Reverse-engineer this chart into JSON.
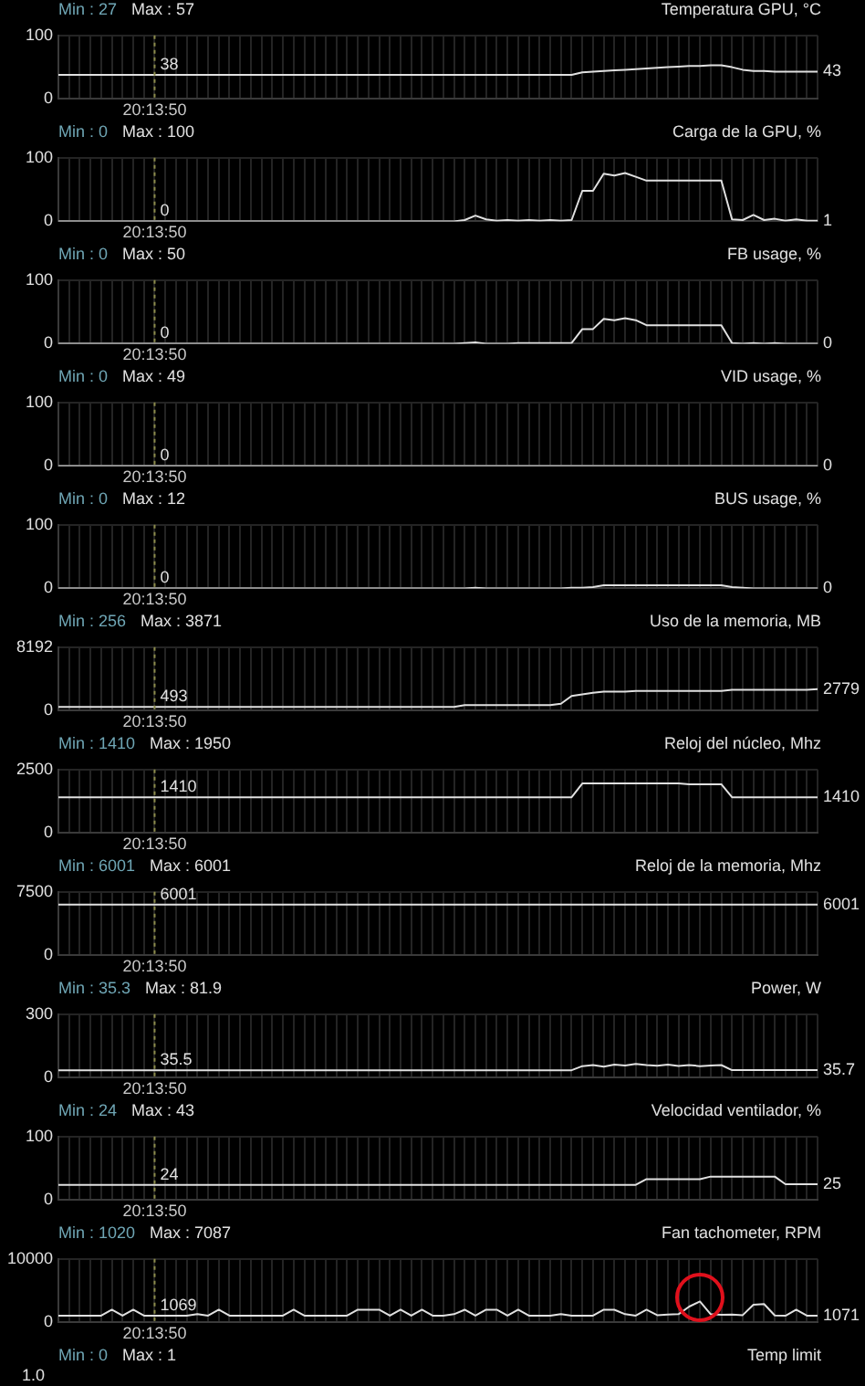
{
  "chart_data": [
    {
      "type": "line",
      "title": "Temperatura GPU, °C",
      "annotations": [
        "Min : 27",
        "Max : 57",
        {
          "text": "38",
          "x": "20:13:50",
          "y": 38
        },
        "43"
      ],
      "categories": [
        null,
        null,
        null,
        null,
        null,
        null,
        null,
        null,
        null,
        "20:13:50",
        null,
        null,
        null,
        null,
        null,
        null,
        null,
        null,
        null,
        null,
        null,
        null,
        null,
        null,
        null,
        null,
        null,
        null,
        null,
        null,
        null,
        null,
        null,
        null,
        null,
        null,
        null,
        null,
        null,
        null,
        null,
        null,
        null,
        null,
        null,
        null,
        null,
        null,
        null,
        null,
        null,
        null,
        null,
        null,
        null,
        null,
        null,
        null,
        null,
        null,
        null,
        null,
        null,
        null,
        null,
        null,
        null,
        null,
        null,
        null,
        null,
        null
      ],
      "color": "#e0e0e0",
      "ylim": [
        0,
        100
      ],
      "yticks": [
        0,
        100
      ],
      "grid": true,
      "ref_lines": [
        {
          "axis": "x",
          "value": "20:13:50",
          "color": "#8a8a4a",
          "line_style": "dotted"
        }
      ],
      "values": [
        38,
        38,
        38,
        38,
        38,
        38,
        38,
        38,
        38,
        38,
        38,
        38,
        38,
        38,
        38,
        38,
        38,
        38,
        38,
        38,
        38,
        38,
        38,
        38,
        38,
        38,
        38,
        38,
        38,
        38,
        38,
        38,
        38,
        38,
        38,
        38,
        38,
        38,
        38,
        38,
        38,
        38,
        38,
        38,
        38,
        38,
        38,
        38,
        38,
        42,
        43,
        44,
        45,
        46,
        47,
        48,
        49,
        50,
        51,
        52,
        52,
        53,
        53,
        50,
        46,
        44,
        44,
        43,
        43,
        43,
        43,
        43
      ]
    },
    {
      "type": "line",
      "title": "Carga de la GPU, %",
      "annotations": [
        "Min : 0",
        "Max : 100",
        {
          "text": "0",
          "x": "20:13:50",
          "y": 0
        },
        "1"
      ],
      "categories": [
        null,
        null,
        null,
        null,
        null,
        null,
        null,
        null,
        null,
        "20:13:50",
        null,
        null,
        null,
        null,
        null,
        null,
        null,
        null,
        null,
        null,
        null,
        null,
        null,
        null,
        null,
        null,
        null,
        null,
        null,
        null,
        null,
        null,
        null,
        null,
        null,
        null,
        null,
        null,
        null,
        null,
        null,
        null,
        null,
        null,
        null,
        null,
        null,
        null,
        null,
        null,
        null,
        null,
        null,
        null,
        null,
        null,
        null,
        null,
        null,
        null,
        null,
        null,
        null,
        null,
        null,
        null,
        null,
        null,
        null,
        null,
        null,
        null
      ],
      "color": "#e0e0e0",
      "ylim": [
        0,
        100
      ],
      "yticks": [
        0,
        100
      ],
      "grid": true,
      "ref_lines": [
        {
          "axis": "x",
          "value": "20:13:50",
          "color": "#8a8a4a",
          "line_style": "dotted"
        }
      ],
      "values": [
        0,
        0,
        0,
        0,
        0,
        0,
        0,
        0,
        0,
        0,
        0,
        0,
        0,
        0,
        0,
        0,
        0,
        0,
        0,
        0,
        0,
        0,
        0,
        0,
        0,
        0,
        0,
        0,
        0,
        0,
        0,
        0,
        0,
        0,
        0,
        0,
        0,
        0,
        2,
        9,
        3,
        1,
        2,
        1,
        2,
        1,
        2,
        1,
        2,
        48,
        48,
        75,
        72,
        76,
        70,
        64,
        64,
        64,
        64,
        64,
        64,
        64,
        64,
        3,
        2,
        10,
        2,
        4,
        1,
        3,
        1,
        1
      ]
    },
    {
      "type": "line",
      "title": "FB usage, %",
      "annotations": [
        "Min : 0",
        "Max : 50",
        {
          "text": "0",
          "x": "20:13:50",
          "y": 0
        },
        "0"
      ],
      "categories": [
        null,
        null,
        null,
        null,
        null,
        null,
        null,
        null,
        null,
        "20:13:50",
        null,
        null,
        null,
        null,
        null,
        null,
        null,
        null,
        null,
        null,
        null,
        null,
        null,
        null,
        null,
        null,
        null,
        null,
        null,
        null,
        null,
        null,
        null,
        null,
        null,
        null,
        null,
        null,
        null,
        null,
        null,
        null,
        null,
        null,
        null,
        null,
        null,
        null,
        null,
        null,
        null,
        null,
        null,
        null,
        null,
        null,
        null,
        null,
        null,
        null,
        null,
        null,
        null,
        null,
        null,
        null,
        null,
        null,
        null,
        null,
        null,
        null
      ],
      "color": "#e0e0e0",
      "ylim": [
        0,
        100
      ],
      "yticks": [
        0,
        100
      ],
      "grid": true,
      "ref_lines": [
        {
          "axis": "x",
          "value": "20:13:50",
          "color": "#8a8a4a",
          "line_style": "dotted"
        }
      ],
      "values": [
        0,
        0,
        0,
        0,
        0,
        0,
        0,
        0,
        0,
        0,
        0,
        0,
        0,
        0,
        0,
        0,
        0,
        0,
        0,
        0,
        0,
        0,
        0,
        0,
        0,
        0,
        0,
        0,
        0,
        0,
        0,
        0,
        0,
        0,
        0,
        0,
        0,
        0,
        1,
        2,
        0,
        0,
        0,
        1,
        1,
        1,
        1,
        1,
        1,
        23,
        23,
        39,
        37,
        40,
        37,
        29,
        29,
        29,
        29,
        29,
        29,
        29,
        29,
        1,
        0,
        1,
        0,
        1,
        0,
        0,
        0,
        0
      ]
    },
    {
      "type": "line",
      "title": "VID usage, %",
      "annotations": [
        "Min : 0",
        "Max : 49",
        {
          "text": "0",
          "x": "20:13:50",
          "y": 0
        },
        "0"
      ],
      "categories": [
        null,
        null,
        null,
        null,
        null,
        null,
        null,
        null,
        null,
        "20:13:50",
        null,
        null,
        null,
        null,
        null,
        null,
        null,
        null,
        null,
        null,
        null,
        null,
        null,
        null,
        null,
        null,
        null,
        null,
        null,
        null,
        null,
        null,
        null,
        null,
        null,
        null,
        null,
        null,
        null,
        null,
        null,
        null,
        null,
        null,
        null,
        null,
        null,
        null,
        null,
        null,
        null,
        null,
        null,
        null,
        null,
        null,
        null,
        null,
        null,
        null,
        null,
        null,
        null,
        null,
        null,
        null,
        null,
        null,
        null,
        null,
        null,
        null
      ],
      "color": "#e0e0e0",
      "ylim": [
        0,
        100
      ],
      "yticks": [
        0,
        100
      ],
      "grid": true,
      "ref_lines": [
        {
          "axis": "x",
          "value": "20:13:50",
          "color": "#8a8a4a",
          "line_style": "dotted"
        }
      ],
      "values": [
        0,
        0,
        0,
        0,
        0,
        0,
        0,
        0,
        0,
        0,
        0,
        0,
        0,
        0,
        0,
        0,
        0,
        0,
        0,
        0,
        0,
        0,
        0,
        0,
        0,
        0,
        0,
        0,
        0,
        0,
        0,
        0,
        0,
        0,
        0,
        0,
        0,
        0,
        0,
        0,
        0,
        0,
        0,
        0,
        0,
        0,
        0,
        0,
        0,
        0,
        0,
        0,
        0,
        0,
        0,
        0,
        0,
        0,
        0,
        0,
        0,
        0,
        0,
        0,
        0,
        0,
        0,
        0,
        0,
        0,
        0,
        0
      ]
    },
    {
      "type": "line",
      "title": "BUS usage, %",
      "annotations": [
        "Min : 0",
        "Max : 12",
        {
          "text": "0",
          "x": "20:13:50",
          "y": 0
        },
        "0"
      ],
      "categories": [
        null,
        null,
        null,
        null,
        null,
        null,
        null,
        null,
        null,
        "20:13:50",
        null,
        null,
        null,
        null,
        null,
        null,
        null,
        null,
        null,
        null,
        null,
        null,
        null,
        null,
        null,
        null,
        null,
        null,
        null,
        null,
        null,
        null,
        null,
        null,
        null,
        null,
        null,
        null,
        null,
        null,
        null,
        null,
        null,
        null,
        null,
        null,
        null,
        null,
        null,
        null,
        null,
        null,
        null,
        null,
        null,
        null,
        null,
        null,
        null,
        null,
        null,
        null,
        null,
        null,
        null,
        null,
        null,
        null,
        null,
        null,
        null,
        null
      ],
      "color": "#e0e0e0",
      "ylim": [
        0,
        100
      ],
      "yticks": [
        0,
        100
      ],
      "grid": true,
      "ref_lines": [
        {
          "axis": "x",
          "value": "20:13:50",
          "color": "#8a8a4a",
          "line_style": "dotted"
        }
      ],
      "values": [
        0,
        0,
        0,
        0,
        0,
        0,
        0,
        0,
        0,
        0,
        0,
        0,
        0,
        0,
        0,
        0,
        0,
        0,
        0,
        0,
        0,
        0,
        0,
        0,
        0,
        0,
        0,
        0,
        0,
        0,
        0,
        0,
        0,
        0,
        0,
        0,
        0,
        0,
        0,
        1,
        0,
        0,
        0,
        0,
        0,
        0,
        0,
        0,
        1,
        1,
        2,
        5,
        5,
        5,
        5,
        5,
        5,
        5,
        5,
        5,
        5,
        5,
        5,
        2,
        1,
        0,
        0,
        0,
        0,
        0,
        0,
        0
      ]
    },
    {
      "type": "line",
      "title": "Uso de la memoria, MB",
      "annotations": [
        "Min : 256",
        "Max : 3871",
        {
          "text": "493",
          "x": "20:13:50",
          "y": 493
        },
        "2779"
      ],
      "categories": [
        null,
        null,
        null,
        null,
        null,
        null,
        null,
        null,
        null,
        "20:13:50",
        null,
        null,
        null,
        null,
        null,
        null,
        null,
        null,
        null,
        null,
        null,
        null,
        null,
        null,
        null,
        null,
        null,
        null,
        null,
        null,
        null,
        null,
        null,
        null,
        null,
        null,
        null,
        null,
        null,
        null,
        null,
        null,
        null,
        null,
        null,
        null,
        null,
        null,
        null,
        null,
        null,
        null,
        null,
        null,
        null,
        null,
        null,
        null,
        null,
        null,
        null,
        null,
        null,
        null,
        null,
        null,
        null,
        null,
        null,
        null,
        null,
        null
      ],
      "color": "#e0e0e0",
      "ylim": [
        0,
        8192
      ],
      "yticks": [
        0,
        8192
      ],
      "grid": true,
      "ref_lines": [
        {
          "axis": "x",
          "value": "20:13:50",
          "color": "#8a8a4a",
          "line_style": "dotted"
        }
      ],
      "values": [
        493,
        493,
        493,
        493,
        493,
        493,
        493,
        493,
        493,
        493,
        493,
        493,
        493,
        493,
        493,
        493,
        493,
        493,
        493,
        493,
        493,
        493,
        493,
        493,
        493,
        493,
        493,
        493,
        493,
        493,
        493,
        493,
        493,
        493,
        493,
        493,
        493,
        493,
        720,
        720,
        720,
        720,
        720,
        720,
        720,
        720,
        720,
        900,
        1900,
        2100,
        2300,
        2450,
        2450,
        2450,
        2550,
        2550,
        2550,
        2550,
        2550,
        2550,
        2550,
        2550,
        2550,
        2700,
        2700,
        2700,
        2700,
        2700,
        2700,
        2700,
        2700,
        2779
      ]
    },
    {
      "type": "line",
      "title": "Reloj del núcleo, Mhz",
      "annotations": [
        "Min : 1410",
        "Max : 1950",
        {
          "text": "1410",
          "x": "20:13:50",
          "y": 1410
        },
        "1410"
      ],
      "categories": [
        null,
        null,
        null,
        null,
        null,
        null,
        null,
        null,
        null,
        "20:13:50",
        null,
        null,
        null,
        null,
        null,
        null,
        null,
        null,
        null,
        null,
        null,
        null,
        null,
        null,
        null,
        null,
        null,
        null,
        null,
        null,
        null,
        null,
        null,
        null,
        null,
        null,
        null,
        null,
        null,
        null,
        null,
        null,
        null,
        null,
        null,
        null,
        null,
        null,
        null,
        null,
        null,
        null,
        null,
        null,
        null,
        null,
        null,
        null,
        null,
        null,
        null,
        null,
        null,
        null,
        null,
        null,
        null,
        null,
        null,
        null,
        null,
        null
      ],
      "color": "#e0e0e0",
      "ylim": [
        0,
        2500
      ],
      "yticks": [
        0,
        2500
      ],
      "grid": true,
      "ref_lines": [
        {
          "axis": "x",
          "value": "20:13:50",
          "color": "#8a8a4a",
          "line_style": "dotted"
        }
      ],
      "values": [
        1410,
        1410,
        1410,
        1410,
        1410,
        1410,
        1410,
        1410,
        1410,
        1410,
        1410,
        1410,
        1410,
        1410,
        1410,
        1410,
        1410,
        1410,
        1410,
        1410,
        1410,
        1410,
        1410,
        1410,
        1410,
        1410,
        1410,
        1410,
        1410,
        1410,
        1410,
        1410,
        1410,
        1410,
        1410,
        1410,
        1410,
        1410,
        1410,
        1410,
        1410,
        1410,
        1410,
        1410,
        1410,
        1410,
        1410,
        1410,
        1410,
        1950,
        1950,
        1950,
        1950,
        1950,
        1950,
        1950,
        1950,
        1950,
        1950,
        1920,
        1920,
        1920,
        1920,
        1410,
        1410,
        1410,
        1410,
        1410,
        1410,
        1410,
        1410,
        1410
      ]
    },
    {
      "type": "line",
      "title": "Reloj de la memoria, Mhz",
      "annotations": [
        "Min : 6001",
        "Max : 6001",
        {
          "text": "6001",
          "x": "20:13:50",
          "y": 6001
        },
        "6001"
      ],
      "categories": [
        null,
        null,
        null,
        null,
        null,
        null,
        null,
        null,
        null,
        "20:13:50",
        null,
        null,
        null,
        null,
        null,
        null,
        null,
        null,
        null,
        null,
        null,
        null,
        null,
        null,
        null,
        null,
        null,
        null,
        null,
        null,
        null,
        null,
        null,
        null,
        null,
        null,
        null,
        null,
        null,
        null,
        null,
        null,
        null,
        null,
        null,
        null,
        null,
        null,
        null,
        null,
        null,
        null,
        null,
        null,
        null,
        null,
        null,
        null,
        null,
        null,
        null,
        null,
        null,
        null,
        null,
        null,
        null,
        null,
        null,
        null,
        null,
        null
      ],
      "color": "#e0e0e0",
      "ylim": [
        0,
        7500
      ],
      "yticks": [
        0,
        7500
      ],
      "grid": true,
      "ref_lines": [
        {
          "axis": "x",
          "value": "20:13:50",
          "color": "#8a8a4a",
          "line_style": "dotted"
        }
      ],
      "values": [
        6001,
        6001,
        6001,
        6001,
        6001,
        6001,
        6001,
        6001,
        6001,
        6001,
        6001,
        6001,
        6001,
        6001,
        6001,
        6001,
        6001,
        6001,
        6001,
        6001,
        6001,
        6001,
        6001,
        6001,
        6001,
        6001,
        6001,
        6001,
        6001,
        6001,
        6001,
        6001,
        6001,
        6001,
        6001,
        6001,
        6001,
        6001,
        6001,
        6001,
        6001,
        6001,
        6001,
        6001,
        6001,
        6001,
        6001,
        6001,
        6001,
        6001,
        6001,
        6001,
        6001,
        6001,
        6001,
        6001,
        6001,
        6001,
        6001,
        6001,
        6001,
        6001,
        6001,
        6001,
        6001,
        6001,
        6001,
        6001,
        6001,
        6001,
        6001,
        6001
      ]
    },
    {
      "type": "line",
      "title": "Power, W",
      "annotations": [
        "Min : 35.3",
        "Max : 81.9",
        {
          "text": "35.5",
          "x": "20:13:50",
          "y": 35.5
        },
        "35.7"
      ],
      "categories": [
        null,
        null,
        null,
        null,
        null,
        null,
        null,
        null,
        null,
        "20:13:50",
        null,
        null,
        null,
        null,
        null,
        null,
        null,
        null,
        null,
        null,
        null,
        null,
        null,
        null,
        null,
        null,
        null,
        null,
        null,
        null,
        null,
        null,
        null,
        null,
        null,
        null,
        null,
        null,
        null,
        null,
        null,
        null,
        null,
        null,
        null,
        null,
        null,
        null,
        null,
        null,
        null,
        null,
        null,
        null,
        null,
        null,
        null,
        null,
        null,
        null,
        null,
        null,
        null,
        null,
        null,
        null,
        null,
        null,
        null,
        null,
        null,
        null
      ],
      "color": "#e0e0e0",
      "ylim": [
        0,
        300
      ],
      "yticks": [
        0,
        300
      ],
      "grid": true,
      "ref_lines": [
        {
          "axis": "x",
          "value": "20:13:50",
          "color": "#8a8a4a",
          "line_style": "dotted"
        }
      ],
      "values": [
        35.5,
        35.5,
        35.5,
        35.5,
        35.5,
        35.5,
        35.5,
        35.5,
        35.5,
        35.5,
        35.5,
        35.5,
        35.5,
        35.5,
        35.5,
        35.5,
        35.5,
        35.5,
        35.5,
        35.5,
        35.5,
        35.5,
        35.5,
        35.5,
        35.5,
        35.5,
        35.5,
        35.5,
        35.5,
        35.5,
        35.5,
        35.5,
        35.5,
        35.5,
        35.5,
        35.5,
        35.5,
        35.5,
        35.5,
        35.5,
        35.5,
        35.5,
        35.5,
        35.5,
        35.5,
        35.5,
        35.5,
        35.5,
        35.5,
        55,
        60,
        52,
        62,
        58,
        65,
        60,
        57,
        62,
        56,
        60,
        55,
        58,
        60,
        36,
        35.7,
        35.7,
        35.7,
        35.7,
        35.7,
        35.7,
        35.7,
        35.7
      ]
    },
    {
      "type": "line",
      "title": "Velocidad ventilador, %",
      "annotations": [
        "Min : 24",
        "Max : 43",
        {
          "text": "24",
          "x": "20:13:50",
          "y": 24
        },
        "25"
      ],
      "categories": [
        null,
        null,
        null,
        null,
        null,
        null,
        null,
        null,
        null,
        "20:13:50",
        null,
        null,
        null,
        null,
        null,
        null,
        null,
        null,
        null,
        null,
        null,
        null,
        null,
        null,
        null,
        null,
        null,
        null,
        null,
        null,
        null,
        null,
        null,
        null,
        null,
        null,
        null,
        null,
        null,
        null,
        null,
        null,
        null,
        null,
        null,
        null,
        null,
        null,
        null,
        null,
        null,
        null,
        null,
        null,
        null,
        null,
        null,
        null,
        null,
        null,
        null,
        null,
        null,
        null,
        null,
        null,
        null,
        null,
        null,
        null,
        null,
        null
      ],
      "color": "#e0e0e0",
      "ylim": [
        0,
        100
      ],
      "yticks": [
        0,
        100
      ],
      "grid": true,
      "ref_lines": [
        {
          "axis": "x",
          "value": "20:13:50",
          "color": "#8a8a4a",
          "line_style": "dotted"
        }
      ],
      "values": [
        24,
        24,
        24,
        24,
        24,
        24,
        24,
        24,
        24,
        24,
        24,
        24,
        24,
        24,
        24,
        24,
        24,
        24,
        24,
        24,
        24,
        24,
        24,
        24,
        24,
        24,
        24,
        24,
        24,
        24,
        24,
        24,
        24,
        24,
        24,
        24,
        24,
        24,
        24,
        24,
        24,
        24,
        24,
        24,
        24,
        24,
        24,
        24,
        24,
        24,
        24,
        24,
        24,
        24,
        24,
        33,
        33,
        33,
        33,
        33,
        33,
        37,
        37,
        37,
        37,
        37,
        37,
        37,
        25,
        25,
        25,
        25
      ]
    },
    {
      "type": "line",
      "title": "Fan tachometer, RPM",
      "annotations": [
        "Min : 1020",
        "Max : 7087",
        {
          "text": "1069",
          "x": "20:13:50",
          "y": 1069
        },
        "1071"
      ],
      "categories": [
        null,
        null,
        null,
        null,
        null,
        null,
        null,
        null,
        null,
        "20:13:50",
        null,
        null,
        null,
        null,
        null,
        null,
        null,
        null,
        null,
        null,
        null,
        null,
        null,
        null,
        null,
        null,
        null,
        null,
        null,
        null,
        null,
        null,
        null,
        null,
        null,
        null,
        null,
        null,
        null,
        null,
        null,
        null,
        null,
        null,
        null,
        null,
        null,
        null,
        null,
        null,
        null,
        null,
        null,
        null,
        null,
        null,
        null,
        null,
        null,
        null,
        null,
        null,
        null,
        null,
        null,
        null,
        null,
        null,
        null,
        null,
        null,
        null
      ],
      "color": "#e0e0e0",
      "ylim": [
        0,
        10000
      ],
      "yticks": [
        0,
        10000
      ],
      "grid": true,
      "ref_lines": [
        {
          "axis": "x",
          "value": "20:13:50",
          "color": "#8a8a4a",
          "line_style": "dotted"
        }
      ],
      "values": [
        1069,
        1069,
        1069,
        1069,
        1069,
        2000,
        1069,
        2000,
        1069,
        1069,
        1069,
        1069,
        1069,
        1300,
        1069,
        2000,
        1069,
        1069,
        1069,
        1069,
        1069,
        1069,
        2000,
        1069,
        1069,
        1069,
        1069,
        1069,
        2000,
        2000,
        2000,
        1069,
        2000,
        1069,
        2000,
        1069,
        1069,
        1300,
        2000,
        1069,
        2000,
        2000,
        1069,
        2000,
        1069,
        1069,
        1069,
        1300,
        1069,
        1069,
        1069,
        2000,
        2000,
        1300,
        1069,
        2000,
        1150,
        1250,
        1300,
        2500,
        3300,
        1300,
        1200,
        1250,
        1150,
        2800,
        2900,
        1100,
        1050,
        2000,
        1069,
        1071
      ]
    },
    {
      "type": "other",
      "title": "Temp limit",
      "annotations": [
        "Min : 0",
        "Max : 1",
        "1.0"
      ]
    }
  ]
}
